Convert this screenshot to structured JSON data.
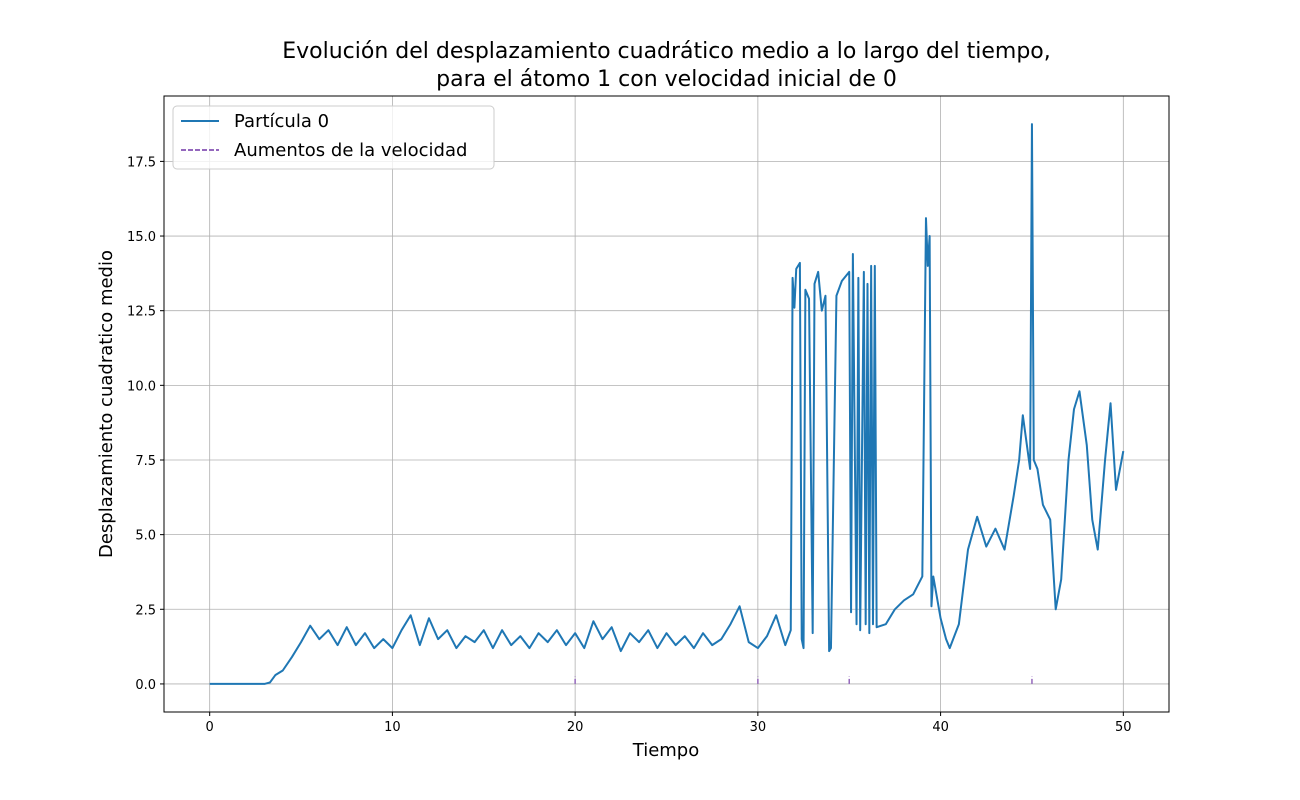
{
  "chart_data": {
    "type": "line",
    "title": "Evolución del desplazamiento cuadrático medio a lo largo del tiempo,\npara el átomo 1 con velocidad inicial de 0",
    "xlabel": "Tiempo",
    "ylabel": "Desplazamiento cuadratico medio",
    "x": [
      0,
      1,
      2,
      3,
      3.3,
      3.6,
      4,
      4.5,
      5,
      5.5,
      6,
      6.5,
      7,
      7.5,
      8,
      8.5,
      9,
      9.5,
      10,
      10.5,
      11,
      11.5,
      12,
      12.5,
      13,
      13.5,
      14,
      14.5,
      15,
      15.5,
      16,
      16.5,
      17,
      17.5,
      18,
      18.5,
      19,
      19.5,
      20,
      20.5,
      21,
      21.5,
      22,
      22.5,
      23,
      23.5,
      24,
      24.5,
      25,
      25.5,
      26,
      26.5,
      27,
      27.5,
      28,
      28.5,
      29,
      29.5,
      30,
      30.5,
      31,
      31.5,
      31.8,
      31.9,
      32,
      32.1,
      32.3,
      32.4,
      32.5,
      32.6,
      32.8,
      33,
      33.1,
      33.3,
      33.5,
      33.7,
      33.9,
      34,
      34.3,
      34.6,
      35,
      35.1,
      35.2,
      35.4,
      35.5,
      35.6,
      35.8,
      35.9,
      36,
      36.1,
      36.2,
      36.3,
      36.4,
      36.5,
      37,
      37.5,
      38,
      38.5,
      39,
      39.2,
      39.3,
      39.4,
      39.5,
      39.6,
      40,
      40.3,
      40.5,
      41,
      41.5,
      42,
      42.5,
      43,
      43.5,
      44,
      44.3,
      44.5,
      44.9,
      45,
      45.1,
      45.3,
      45.6,
      46,
      46.3,
      46.6,
      47,
      47.3,
      47.6,
      48,
      48.3,
      48.6,
      49,
      49.3,
      49.6,
      50
    ],
    "series": [
      {
        "name": "Partícula 0",
        "color": "#1f77b4",
        "values": [
          0,
          0,
          0,
          0,
          0.05,
          0.3,
          0.45,
          0.9,
          1.4,
          1.95,
          1.5,
          1.8,
          1.3,
          1.9,
          1.3,
          1.7,
          1.2,
          1.5,
          1.2,
          1.8,
          2.3,
          1.3,
          2.2,
          1.5,
          1.8,
          1.2,
          1.6,
          1.4,
          1.8,
          1.2,
          1.8,
          1.3,
          1.6,
          1.2,
          1.7,
          1.4,
          1.8,
          1.3,
          1.7,
          1.2,
          2.1,
          1.5,
          1.9,
          1.1,
          1.7,
          1.4,
          1.8,
          1.2,
          1.7,
          1.3,
          1.6,
          1.2,
          1.7,
          1.3,
          1.5,
          2.0,
          2.6,
          1.4,
          1.2,
          1.6,
          2.3,
          1.3,
          1.8,
          13.6,
          12.6,
          13.9,
          14.1,
          1.5,
          1.2,
          13.2,
          12.9,
          1.7,
          13.4,
          13.8,
          12.5,
          13.0,
          1.1,
          1.2,
          13.0,
          13.5,
          13.8,
          2.4,
          14.4,
          2.0,
          13.6,
          1.8,
          13.8,
          2.0,
          13.4,
          1.7,
          14.0,
          2.0,
          14.0,
          1.9,
          2.0,
          2.5,
          2.8,
          3.0,
          3.6,
          15.6,
          14.0,
          15.0,
          2.6,
          3.6,
          2.2,
          1.5,
          1.2,
          2.0,
          4.5,
          5.6,
          4.6,
          5.2,
          4.5,
          6.3,
          7.5,
          9.0,
          7.2,
          18.75,
          7.5,
          7.2,
          6.0,
          5.5,
          2.5,
          3.5,
          7.5,
          9.2,
          9.8,
          8.0,
          5.5,
          4.5,
          7.5,
          9.4,
          6.5,
          7.8
        ]
      }
    ],
    "vlines": {
      "name": "Aumentos de la velocidad",
      "color": "#9467bd",
      "x": [
        20,
        30,
        35,
        45
      ],
      "ymin": 0,
      "ymax": 0.25
    },
    "xlim": [
      -2.5,
      52.5
    ],
    "xticks": [
      0,
      10,
      20,
      30,
      40,
      50
    ],
    "ylim": [
      -0.94,
      19.69
    ],
    "yticks": [
      0.0,
      2.5,
      5.0,
      7.5,
      10.0,
      12.5,
      15.0,
      17.5
    ],
    "grid": true,
    "legend": "upper left"
  }
}
